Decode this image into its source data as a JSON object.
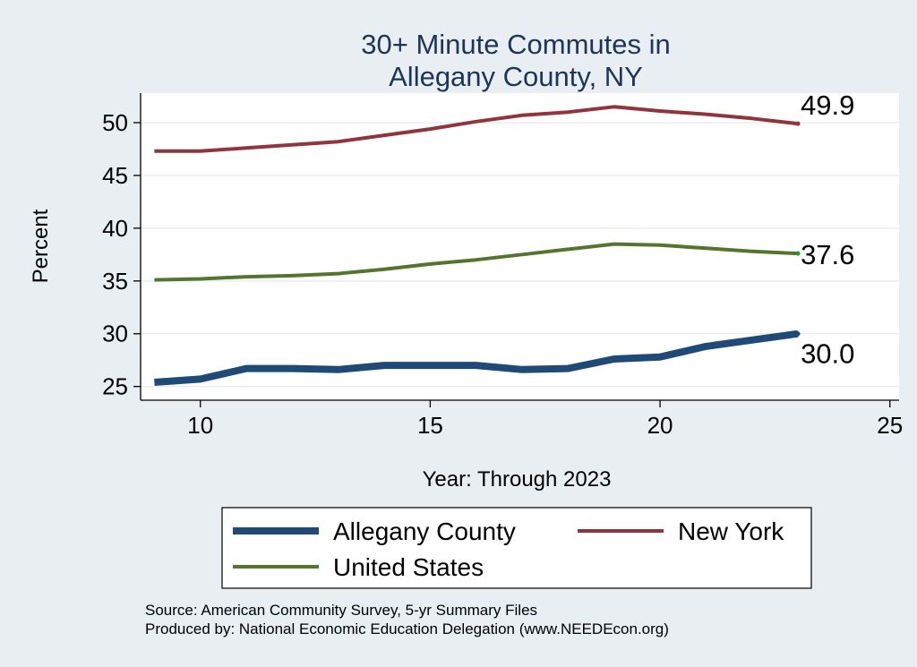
{
  "chart_data": {
    "type": "line",
    "title_lines": [
      "30+ Minute Commutes in",
      "Allegany County, NY"
    ],
    "xlabel": "Year: Through 2023",
    "ylabel": "Percent",
    "xlim": [
      8.7,
      25.2
    ],
    "ylim": [
      23.7,
      52.8
    ],
    "xticks": [
      10,
      15,
      20,
      25
    ],
    "yticks": [
      25,
      30,
      35,
      40,
      45,
      50
    ],
    "grid": "horizontal",
    "legend_position": "bottom",
    "x": [
      9,
      10,
      11,
      12,
      13,
      14,
      15,
      16,
      17,
      18,
      19,
      20,
      21,
      22,
      23
    ],
    "series": [
      {
        "name": "Allegany County",
        "color": "#1f4a78",
        "values": [
          25.4,
          25.7,
          26.7,
          26.7,
          26.6,
          27.0,
          27.0,
          27.0,
          26.6,
          26.7,
          27.6,
          27.8,
          28.8,
          29.4,
          30.0
        ],
        "end_label": "30.0"
      },
      {
        "name": "New York",
        "color": "#90353b",
        "values": [
          47.3,
          47.3,
          47.6,
          47.9,
          48.2,
          48.8,
          49.4,
          50.1,
          50.7,
          51.0,
          51.5,
          51.1,
          50.8,
          50.4,
          49.9
        ],
        "end_label": "49.9"
      },
      {
        "name": "United States",
        "color": "#55752f",
        "values": [
          35.1,
          35.2,
          35.4,
          35.5,
          35.7,
          36.1,
          36.6,
          37.0,
          37.5,
          38.0,
          38.5,
          38.4,
          38.1,
          37.8,
          37.6
        ],
        "end_label": "37.6"
      }
    ],
    "source_lines": [
      "Source: American Community Survey, 5-yr Summary Files",
      "Produced by: National Economic Education Delegation (www.NEEDEcon.org)"
    ]
  }
}
